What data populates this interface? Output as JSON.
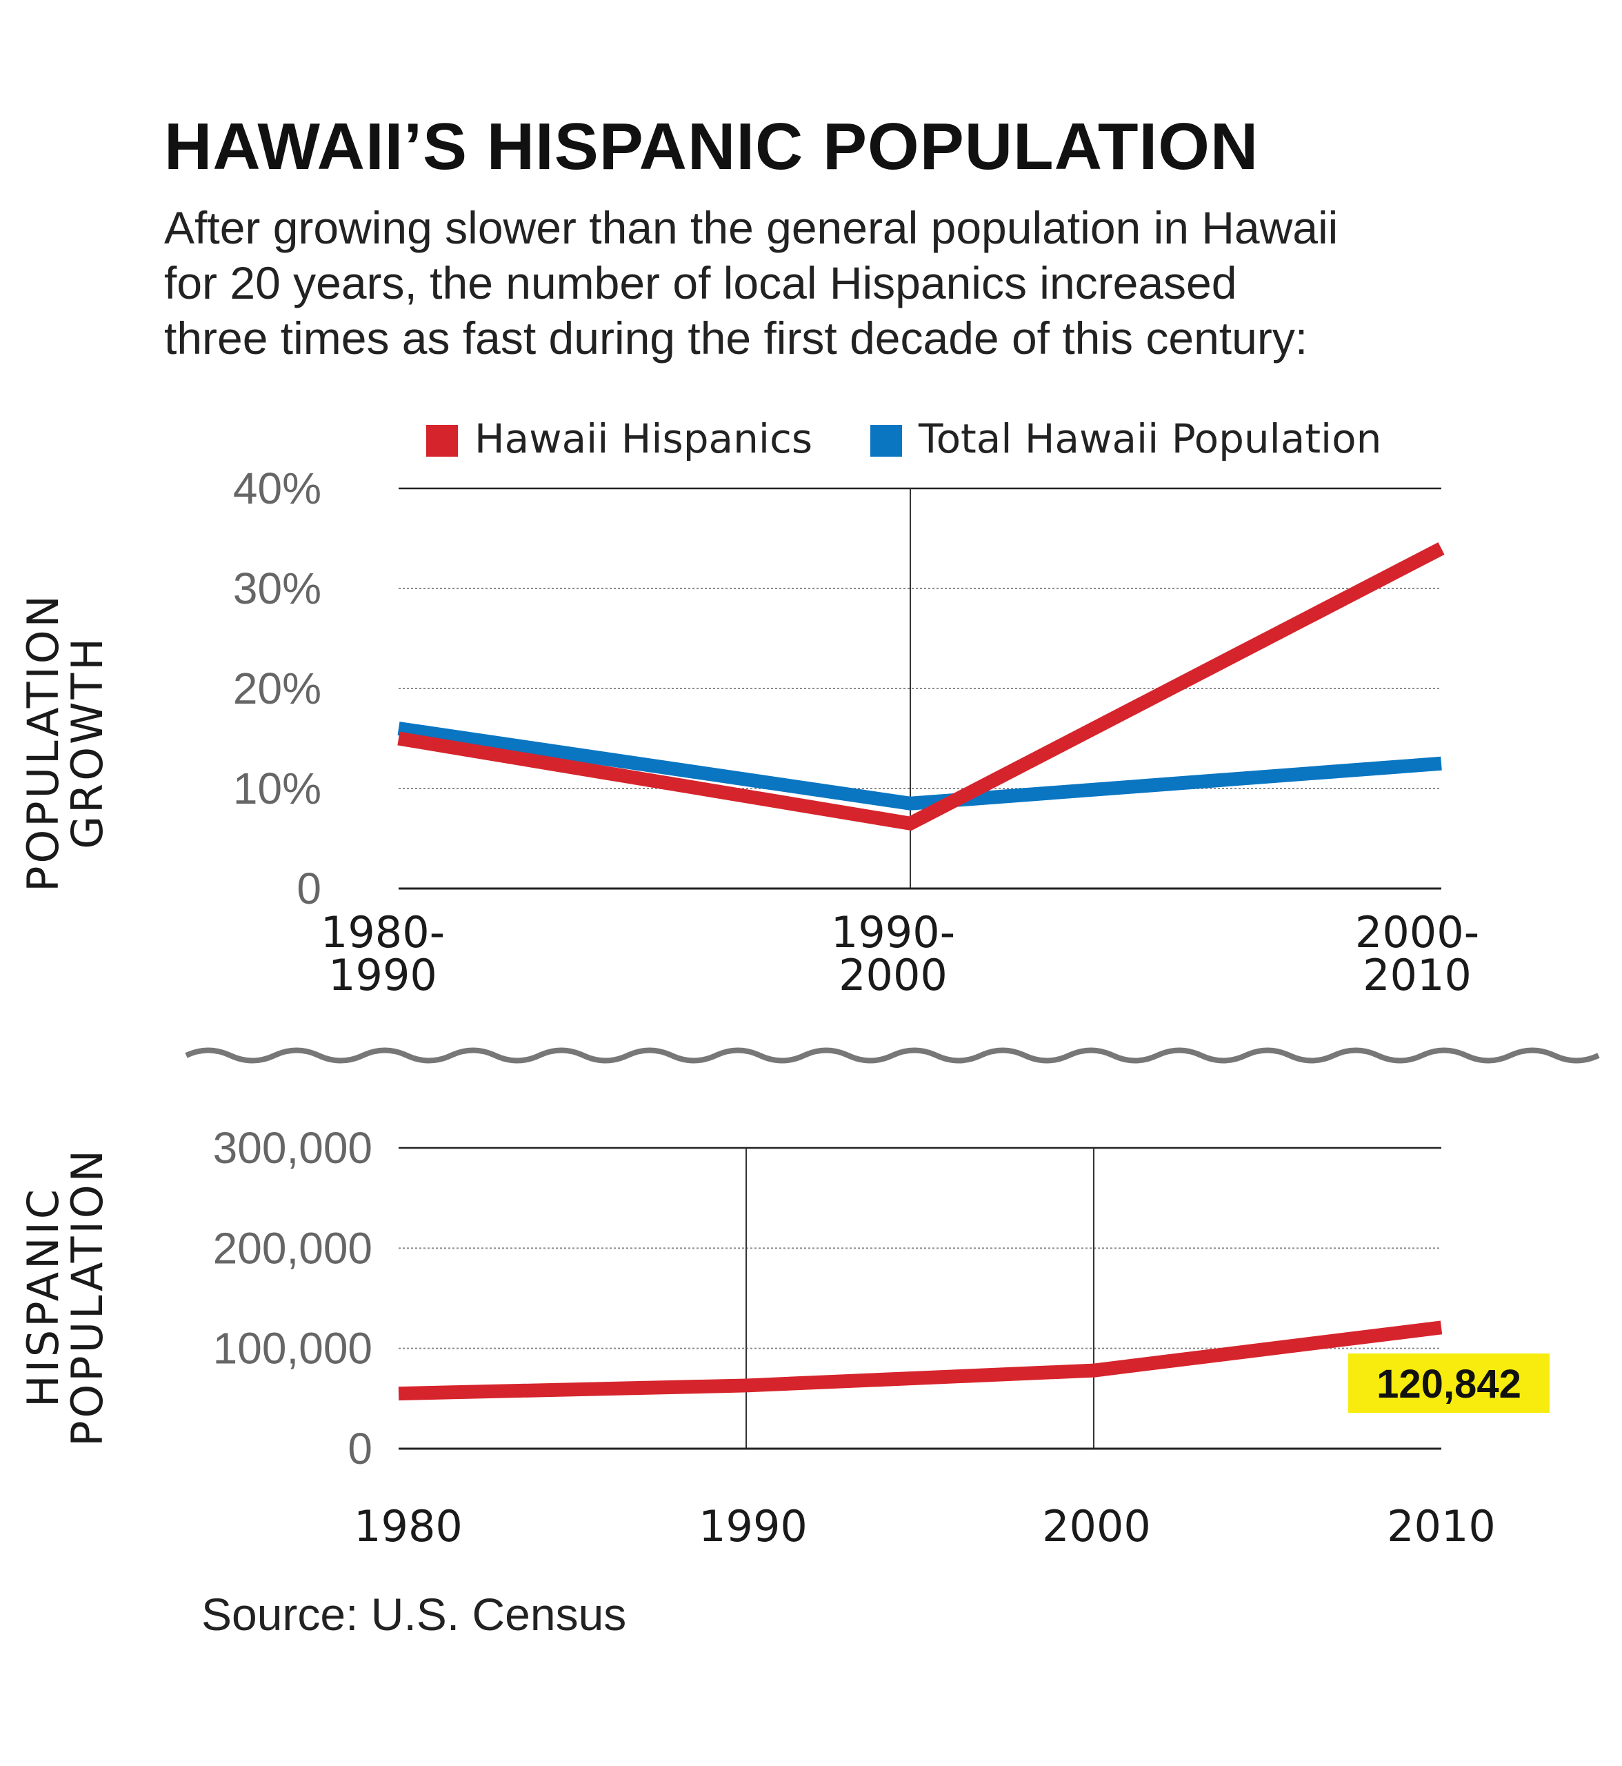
{
  "title": "HAWAII’S HISPANIC POPULATION",
  "subtitle_lines": [
    "After growing slower than the general population in Hawaii",
    "for 20 years, the number of local Hispanics increased",
    "three times as fast during the first decade of this century:"
  ],
  "source": "Source: U.S. Census",
  "colors": {
    "hispanic": "#d6242c",
    "total": "#0a76c2",
    "callout_bg": "#f7ec0d",
    "axis": "#333333",
    "grid": "#8a8a8a"
  },
  "chart_data": [
    {
      "type": "line",
      "ylabel_lines": [
        "POPULATION",
        "GROWTH"
      ],
      "categories": [
        [
          "1980-",
          "1990"
        ],
        [
          "1990-",
          "2000"
        ],
        [
          "2000-",
          "2010"
        ]
      ],
      "y_ticks": [
        "0",
        "10%",
        "20%",
        "30%",
        "40%"
      ],
      "y_tick_values": [
        0,
        10,
        20,
        30,
        40
      ],
      "ylim": [
        0,
        40
      ],
      "legend": "top",
      "series": [
        {
          "name": "Hawaii Hispanics",
          "color_key": "hispanic",
          "values": [
            15,
            6.5,
            34
          ]
        },
        {
          "name": "Total Hawaii Population",
          "color_key": "total",
          "values": [
            16,
            8.5,
            12.5
          ]
        }
      ]
    },
    {
      "type": "line",
      "ylabel_lines": [
        "HISPANIC",
        "POPULATION"
      ],
      "categories": [
        "1980",
        "1990",
        "2000",
        "2010"
      ],
      "y_ticks": [
        "0",
        "100,000",
        "200,000",
        "300,000"
      ],
      "y_tick_values": [
        0,
        100000,
        200000,
        300000
      ],
      "ylim": [
        0,
        300000
      ],
      "series": [
        {
          "color_key": "hispanic",
          "values": [
            55000,
            63000,
            78000,
            120842
          ]
        }
      ],
      "callout": "120,842"
    }
  ]
}
